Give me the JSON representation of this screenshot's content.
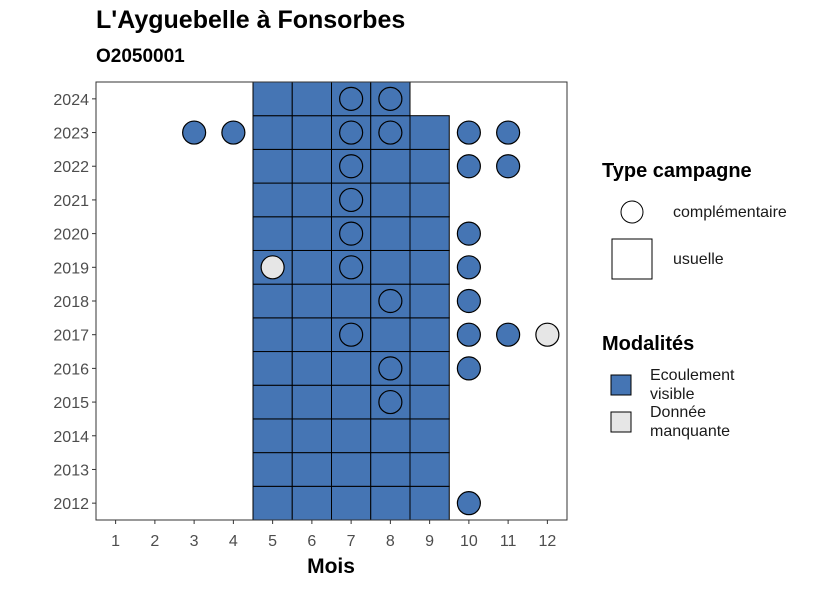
{
  "title": "L'Ayguebelle à Fonsorbes",
  "subtitle": "O2050001",
  "chart_data": {
    "type": "heatmap",
    "xlabel": "Mois",
    "ylabel": "",
    "x_ticks": [
      1,
      2,
      3,
      4,
      5,
      6,
      7,
      8,
      9,
      10,
      11,
      12
    ],
    "y_ticks": [
      2012,
      2013,
      2014,
      2015,
      2016,
      2017,
      2018,
      2019,
      2020,
      2021,
      2022,
      2023,
      2024
    ],
    "xlim": [
      0.5,
      12.5
    ],
    "ylim": [
      2011.5,
      2024.5
    ],
    "colors": {
      "Ecoulement visible": "#4575b4",
      "Donnée manquante": "#e6e6e6"
    },
    "usuelle": [
      {
        "year": 2012,
        "months": [
          5,
          6,
          7,
          8,
          9
        ]
      },
      {
        "year": 2013,
        "months": [
          5,
          6,
          7,
          8,
          9
        ]
      },
      {
        "year": 2014,
        "months": [
          5,
          6,
          7,
          8,
          9
        ]
      },
      {
        "year": 2015,
        "months": [
          5,
          6,
          7,
          8,
          9
        ]
      },
      {
        "year": 2016,
        "months": [
          5,
          6,
          7,
          8,
          9
        ]
      },
      {
        "year": 2017,
        "months": [
          5,
          6,
          7,
          8,
          9
        ]
      },
      {
        "year": 2018,
        "months": [
          5,
          6,
          7,
          8,
          9
        ]
      },
      {
        "year": 2019,
        "months": [
          5,
          6,
          7,
          8,
          9
        ]
      },
      {
        "year": 2020,
        "months": [
          5,
          6,
          7,
          8,
          9
        ]
      },
      {
        "year": 2021,
        "months": [
          5,
          6,
          7,
          8,
          9
        ]
      },
      {
        "year": 2022,
        "months": [
          5,
          6,
          7,
          8,
          9
        ]
      },
      {
        "year": 2023,
        "months": [
          5,
          6,
          7,
          8,
          9
        ]
      },
      {
        "year": 2024,
        "months": [
          5,
          6,
          7,
          8
        ]
      }
    ],
    "complementaire": [
      {
        "year": 2024,
        "month": 7,
        "modalite": "Ecoulement visible"
      },
      {
        "year": 2024,
        "month": 8,
        "modalite": "Ecoulement visible"
      },
      {
        "year": 2023,
        "month": 3,
        "modalite": "Ecoulement visible"
      },
      {
        "year": 2023,
        "month": 4,
        "modalite": "Ecoulement visible"
      },
      {
        "year": 2023,
        "month": 7,
        "modalite": "Ecoulement visible"
      },
      {
        "year": 2023,
        "month": 8,
        "modalite": "Ecoulement visible"
      },
      {
        "year": 2023,
        "month": 10,
        "modalite": "Ecoulement visible"
      },
      {
        "year": 2023,
        "month": 11,
        "modalite": "Ecoulement visible"
      },
      {
        "year": 2022,
        "month": 7,
        "modalite": "Ecoulement visible"
      },
      {
        "year": 2022,
        "month": 10,
        "modalite": "Ecoulement visible"
      },
      {
        "year": 2022,
        "month": 11,
        "modalite": "Ecoulement visible"
      },
      {
        "year": 2021,
        "month": 7,
        "modalite": "Ecoulement visible"
      },
      {
        "year": 2020,
        "month": 7,
        "modalite": "Ecoulement visible"
      },
      {
        "year": 2020,
        "month": 10,
        "modalite": "Ecoulement visible"
      },
      {
        "year": 2019,
        "month": 5,
        "modalite": "Donnée manquante"
      },
      {
        "year": 2019,
        "month": 7,
        "modalite": "Ecoulement visible"
      },
      {
        "year": 2019,
        "month": 10,
        "modalite": "Ecoulement visible"
      },
      {
        "year": 2018,
        "month": 8,
        "modalite": "Ecoulement visible"
      },
      {
        "year": 2018,
        "month": 10,
        "modalite": "Ecoulement visible"
      },
      {
        "year": 2017,
        "month": 7,
        "modalite": "Ecoulement visible"
      },
      {
        "year": 2017,
        "month": 10,
        "modalite": "Ecoulement visible"
      },
      {
        "year": 2017,
        "month": 11,
        "modalite": "Ecoulement visible"
      },
      {
        "year": 2017,
        "month": 12,
        "modalite": "Donnée manquante"
      },
      {
        "year": 2016,
        "month": 8,
        "modalite": "Ecoulement visible"
      },
      {
        "year": 2016,
        "month": 10,
        "modalite": "Ecoulement visible"
      },
      {
        "year": 2015,
        "month": 8,
        "modalite": "Ecoulement visible"
      },
      {
        "year": 2012,
        "month": 10,
        "modalite": "Ecoulement visible"
      }
    ],
    "legend": {
      "type_title": "Type campagne",
      "type_items": [
        "complémentaire",
        "usuelle"
      ],
      "mod_title": "Modalités",
      "mod_items": [
        "Ecoulement\nvisible",
        "Donnée\nmanquante"
      ]
    },
    "legend_position": "right"
  }
}
